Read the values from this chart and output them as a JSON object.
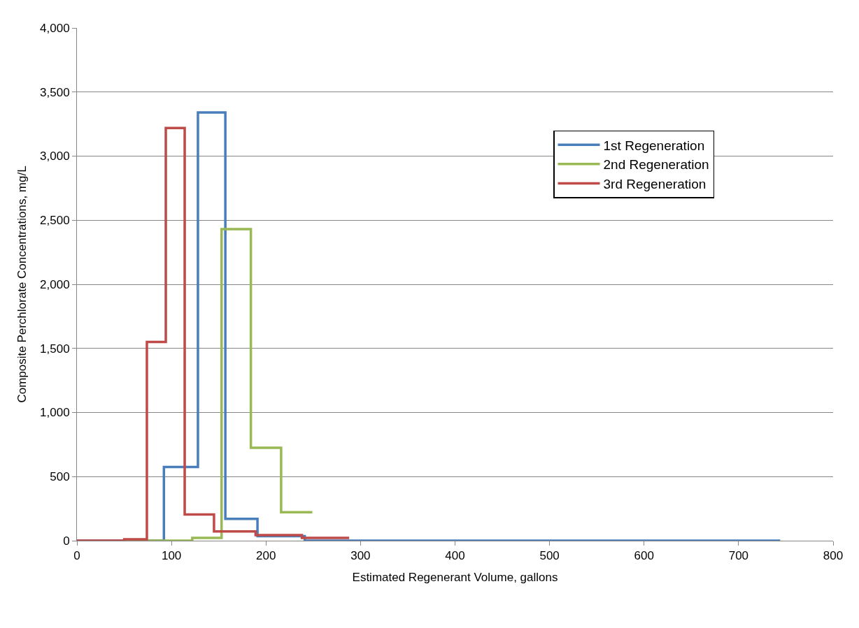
{
  "chart_data": {
    "type": "step",
    "xlabel": "Estimated Regenerant Volume, gallons",
    "ylabel": "Composite Perchlorate Concentrations, mg/L",
    "series": [
      {
        "name": "1st Regeneration",
        "color": "#4a7ebb",
        "x": [
          0,
          92,
          128,
          157,
          191,
          241,
          744
        ],
        "values": [
          0,
          575,
          3340,
          170,
          35,
          0,
          0
        ]
      },
      {
        "name": "2nd Regeneration",
        "color": "#98b954",
        "x": [
          50,
          122,
          153,
          184,
          216,
          249
        ],
        "values": [
          0,
          22,
          2430,
          725,
          222,
          222
        ]
      },
      {
        "name": "3rd Regeneration",
        "color": "#be4b48",
        "x": [
          0,
          50,
          74,
          94,
          114,
          145,
          189,
          238,
          288
        ],
        "values": [
          0,
          11,
          1550,
          3220,
          205,
          72,
          44,
          22,
          22
        ]
      }
    ],
    "xlim": [
      0,
      800
    ],
    "xticks": [
      0,
      100,
      200,
      300,
      400,
      500,
      600,
      700,
      800
    ],
    "ylim": [
      0,
      4000
    ],
    "yticks": [
      {
        "value": 0,
        "label": "0"
      },
      {
        "value": 500,
        "label": "500"
      },
      {
        "value": 1000,
        "label": "1,000"
      },
      {
        "value": 1500,
        "label": "1,500"
      },
      {
        "value": 2000,
        "label": "2,000"
      },
      {
        "value": 2500,
        "label": "2,500"
      },
      {
        "value": 3000,
        "label": "3,000"
      },
      {
        "value": 3500,
        "label": "3,500"
      },
      {
        "value": 4000,
        "label": "4,000"
      }
    ],
    "grid": "y",
    "legend": "right",
    "marker": "none",
    "line_style": "solid"
  }
}
